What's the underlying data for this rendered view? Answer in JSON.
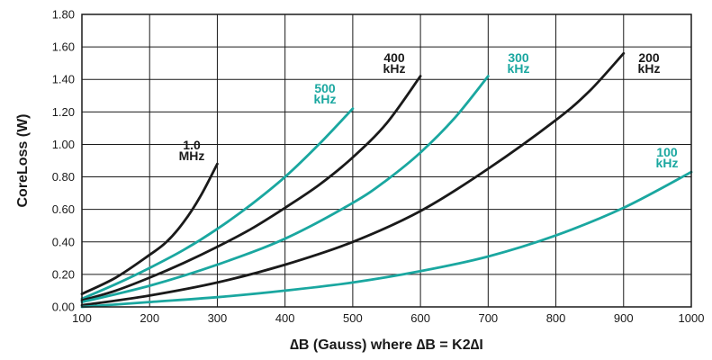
{
  "chart_data": {
    "type": "line",
    "xlabel": "∆B (Gauss) where ∆B = K2∆I",
    "ylabel": "CoreLoss (W)",
    "xlim": [
      100,
      1000
    ],
    "ylim": [
      0,
      1.8
    ],
    "x_ticks": [
      "100",
      "200",
      "300",
      "400",
      "500",
      "600",
      "700",
      "800",
      "900",
      "1000"
    ],
    "y_ticks": [
      "0.00",
      "0.20",
      "0.40",
      "0.60",
      "0.80",
      "1.00",
      "1.20",
      "1.40",
      "1.60",
      "1.80"
    ],
    "grid": true,
    "colors": {
      "black": "#1a1a1a",
      "teal": "#1aa7a0"
    },
    "series": [
      {
        "label_lines": [
          "1.0",
          "MHz"
        ],
        "color": "#1a1a1a",
        "points": [
          [
            100,
            0.08
          ],
          [
            150,
            0.18
          ],
          [
            200,
            0.32
          ],
          [
            225,
            0.4
          ],
          [
            250,
            0.52
          ],
          [
            275,
            0.68
          ],
          [
            300,
            0.88
          ]
        ]
      },
      {
        "label_lines": [
          "500",
          "kHz"
        ],
        "color": "#1aa7a0",
        "points": [
          [
            100,
            0.05
          ],
          [
            150,
            0.14
          ],
          [
            200,
            0.24
          ],
          [
            250,
            0.35
          ],
          [
            300,
            0.48
          ],
          [
            350,
            0.63
          ],
          [
            400,
            0.8
          ],
          [
            450,
            1.0
          ],
          [
            500,
            1.22
          ]
        ]
      },
      {
        "label_lines": [
          "400",
          "kHz"
        ],
        "color": "#1a1a1a",
        "points": [
          [
            100,
            0.04
          ],
          [
            150,
            0.1
          ],
          [
            200,
            0.18
          ],
          [
            250,
            0.27
          ],
          [
            300,
            0.37
          ],
          [
            350,
            0.48
          ],
          [
            400,
            0.61
          ],
          [
            450,
            0.75
          ],
          [
            500,
            0.92
          ],
          [
            550,
            1.13
          ],
          [
            600,
            1.42
          ]
        ]
      },
      {
        "label_lines": [
          "300",
          "kHz"
        ],
        "color": "#1aa7a0",
        "points": [
          [
            100,
            0.03
          ],
          [
            200,
            0.13
          ],
          [
            300,
            0.26
          ],
          [
            400,
            0.42
          ],
          [
            500,
            0.64
          ],
          [
            550,
            0.78
          ],
          [
            600,
            0.95
          ],
          [
            650,
            1.16
          ],
          [
            700,
            1.42
          ]
        ]
      },
      {
        "label_lines": [
          "200",
          "kHz"
        ],
        "color": "#1a1a1a",
        "points": [
          [
            100,
            0.01
          ],
          [
            200,
            0.07
          ],
          [
            300,
            0.15
          ],
          [
            400,
            0.26
          ],
          [
            500,
            0.4
          ],
          [
            600,
            0.59
          ],
          [
            700,
            0.85
          ],
          [
            800,
            1.15
          ],
          [
            850,
            1.33
          ],
          [
            900,
            1.56
          ]
        ]
      },
      {
        "label_lines": [
          "100",
          "kHz"
        ],
        "color": "#1aa7a0",
        "points": [
          [
            100,
            0.0
          ],
          [
            200,
            0.03
          ],
          [
            300,
            0.06
          ],
          [
            400,
            0.1
          ],
          [
            500,
            0.15
          ],
          [
            600,
            0.22
          ],
          [
            700,
            0.31
          ],
          [
            800,
            0.44
          ],
          [
            900,
            0.61
          ],
          [
            1000,
            0.83
          ]
        ]
      }
    ]
  }
}
